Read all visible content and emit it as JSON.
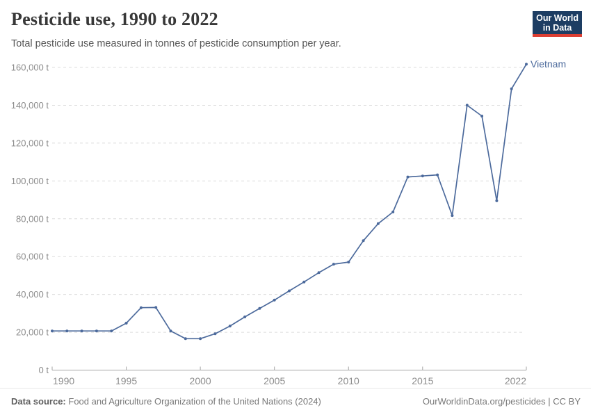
{
  "header": {
    "title": "Pesticide use, 1990 to 2022",
    "subtitle": "Total pesticide use measured in tonnes of pesticide consumption per year.",
    "logo": {
      "line1": "Our World",
      "line2": "in Data"
    }
  },
  "chart_data": {
    "type": "line",
    "title": "Pesticide use, 1990 to 2022",
    "unit": "t",
    "xlabel": "",
    "ylabel": "",
    "xlim": [
      1990,
      2022
    ],
    "ylim": [
      0,
      160000
    ],
    "grid": "horizontal-dashed",
    "legend_position": "end-of-line",
    "x_ticks": [
      1990,
      1995,
      2000,
      2005,
      2010,
      2015,
      2022
    ],
    "y_ticks": [
      0,
      20000,
      40000,
      60000,
      80000,
      100000,
      120000,
      140000,
      160000
    ],
    "y_tick_suffix": " t",
    "x": [
      1990,
      1991,
      1992,
      1993,
      1994,
      1995,
      1996,
      1997,
      1998,
      1999,
      2000,
      2001,
      2002,
      2003,
      2004,
      2005,
      2006,
      2007,
      2008,
      2009,
      2010,
      2011,
      2012,
      2013,
      2014,
      2015,
      2016,
      2017,
      2018,
      2019,
      2020,
      2021,
      2022
    ],
    "series": [
      {
        "name": "Vietnam",
        "color": "#4c6a9c",
        "values": [
          20700,
          20700,
          20700,
          20700,
          20700,
          24800,
          33000,
          33100,
          20700,
          16600,
          16600,
          19200,
          23300,
          28100,
          32600,
          37000,
          41900,
          46600,
          51500,
          56000,
          57100,
          68400,
          77400,
          83600,
          102100,
          102600,
          103200,
          81700,
          140000,
          134300,
          89500,
          148700,
          161700
        ]
      }
    ]
  },
  "footer": {
    "datasource_label": "Data source:",
    "datasource_text": "Food and Agriculture Organization of the United Nations (2024)",
    "credit": "OurWorldinData.org/pesticides | CC BY"
  },
  "colors": {
    "line": "#4c6a9c",
    "grid": "#dcdcdc",
    "axis": "#a5a5a5",
    "tick_label": "#8c8c8c",
    "title": "#383838",
    "subtitle": "#565656",
    "logo_bg": "#1d3d63",
    "logo_accent": "#dc3e32",
    "footer_text": "#787878"
  }
}
